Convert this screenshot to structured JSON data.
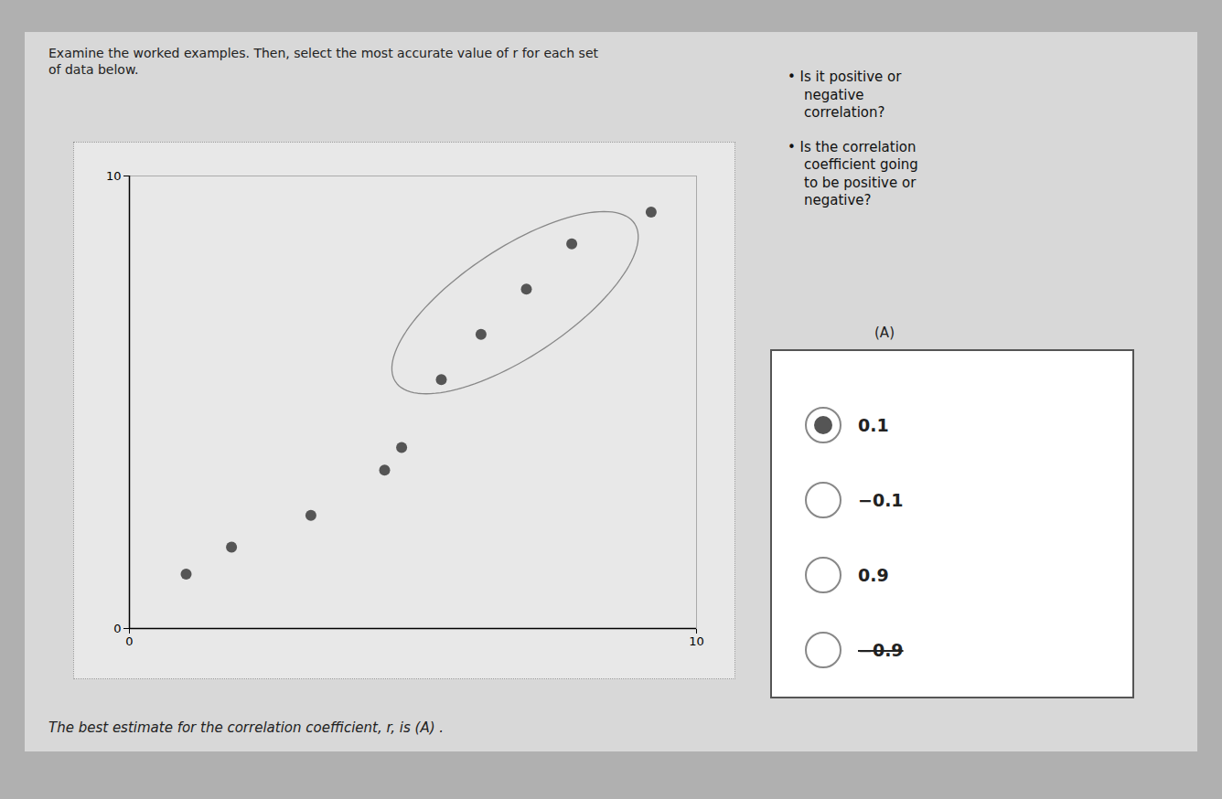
{
  "chart_data": {
    "type": "scatter",
    "title": "Examine the worked examples. Then, select the most accurate value of r for each set\nof data below.",
    "x": [
      1.0,
      1.8,
      3.2,
      4.5,
      4.8,
      5.5,
      6.2,
      7.0,
      7.8,
      9.2
    ],
    "values": [
      1.2,
      1.8,
      2.5,
      3.5,
      4.0,
      5.5,
      6.5,
      7.5,
      8.5,
      9.2
    ],
    "color": "#555555",
    "xlim": [
      0,
      10
    ],
    "ylim": [
      0,
      10
    ],
    "xticks": [
      0,
      10
    ],
    "yticks": [
      0,
      10
    ],
    "grid": false,
    "ellipse": {
      "cx": 6.8,
      "cy": 7.2,
      "width": 5.5,
      "height": 2.2,
      "angle": 42,
      "color": "#888888"
    },
    "annotations": [
      "• Is it positive or\nnegative\ncorrelation?",
      "• Is the correlation\ncoefficient going\nto be positive or\nnegative?",
      "The best estimate for the correlation coefficient, r, is (A)      ."
    ],
    "answer": {
      "label": "(A)",
      "options": [
        "0.1",
        "−0.1",
        "0.9",
        "−0.9"
      ],
      "selected": 0,
      "struck": 3
    }
  }
}
